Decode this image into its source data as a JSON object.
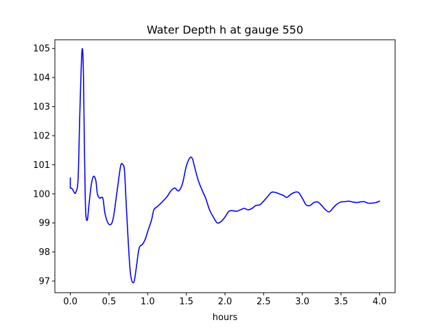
{
  "chart_data": {
    "type": "line",
    "title": "Water Depth h at gauge 550",
    "xlabel": "hours",
    "ylabel": "",
    "xlim": [
      -0.2,
      4.2
    ],
    "ylim": [
      96.6,
      105.3
    ],
    "xticks": [
      0.0,
      0.5,
      1.0,
      1.5,
      2.0,
      2.5,
      3.0,
      3.5,
      4.0
    ],
    "xtick_labels": [
      "0.0",
      "0.5",
      "1.0",
      "1.5",
      "2.0",
      "2.5",
      "3.0",
      "3.5",
      "4.0"
    ],
    "yticks": [
      97,
      98,
      99,
      100,
      101,
      102,
      103,
      104,
      105
    ],
    "ytick_labels": [
      "97",
      "98",
      "99",
      "100",
      "101",
      "102",
      "103",
      "104",
      "105"
    ],
    "grid": false,
    "series": [
      {
        "color": "#0000ff",
        "x": [
          0.0,
          0.0,
          0.01,
          0.02,
          0.03,
          0.05,
          0.07,
          0.1,
          0.12,
          0.14,
          0.15,
          0.16,
          0.17,
          0.18,
          0.19,
          0.2,
          0.22,
          0.24,
          0.27,
          0.3,
          0.33,
          0.35,
          0.38,
          0.42,
          0.45,
          0.5,
          0.55,
          0.6,
          0.65,
          0.68,
          0.7,
          0.72,
          0.75,
          0.78,
          0.82,
          0.85,
          0.88,
          0.9,
          0.93,
          0.97,
          1.0,
          1.05,
          1.08,
          1.12,
          1.18,
          1.25,
          1.3,
          1.35,
          1.4,
          1.45,
          1.5,
          1.55,
          1.58,
          1.6,
          1.65,
          1.7,
          1.75,
          1.8,
          1.85,
          1.9,
          1.95,
          2.0,
          2.05,
          2.1,
          2.15,
          2.2,
          2.25,
          2.3,
          2.35,
          2.4,
          2.45,
          2.5,
          2.55,
          2.6,
          2.65,
          2.7,
          2.75,
          2.8,
          2.85,
          2.9,
          2.95,
          3.0,
          3.05,
          3.1,
          3.15,
          3.2,
          3.25,
          3.3,
          3.35,
          3.4,
          3.45,
          3.5,
          3.55,
          3.6,
          3.65,
          3.7,
          3.75,
          3.8,
          3.85,
          3.9,
          3.95,
          4.0
        ],
        "y": [
          100.55,
          100.22,
          100.2,
          100.18,
          100.15,
          100.05,
          100.05,
          100.5,
          102.5,
          104.3,
          104.9,
          104.9,
          104.0,
          102.0,
          100.3,
          99.3,
          99.1,
          99.6,
          100.3,
          100.6,
          100.45,
          100.0,
          99.85,
          99.85,
          99.3,
          98.95,
          99.1,
          100.0,
          100.95,
          101.0,
          100.8,
          99.8,
          98.3,
          97.2,
          96.95,
          97.4,
          98.0,
          98.2,
          98.25,
          98.45,
          98.7,
          99.1,
          99.45,
          99.55,
          99.7,
          99.9,
          100.1,
          100.2,
          100.1,
          100.35,
          100.95,
          101.25,
          101.2,
          101.0,
          100.5,
          100.15,
          99.85,
          99.45,
          99.2,
          99.0,
          99.05,
          99.2,
          99.4,
          99.42,
          99.4,
          99.45,
          99.5,
          99.45,
          99.5,
          99.6,
          99.62,
          99.75,
          99.9,
          100.05,
          100.05,
          100.0,
          99.95,
          99.88,
          99.98,
          100.05,
          100.05,
          99.85,
          99.62,
          99.6,
          99.7,
          99.72,
          99.6,
          99.45,
          99.38,
          99.52,
          99.65,
          99.72,
          99.73,
          99.75,
          99.72,
          99.7,
          99.72,
          99.73,
          99.68,
          99.68,
          99.7,
          99.75
        ]
      }
    ]
  }
}
